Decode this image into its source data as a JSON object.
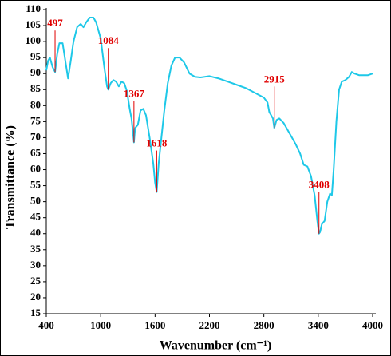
{
  "chart_data": {
    "type": "line",
    "x_label": "Wavenumber (cm⁻¹)",
    "y_label": "Transmittance (%)",
    "xlim": [
      400,
      4000
    ],
    "xticks": [
      400,
      1000,
      1600,
      2200,
      2800,
      3400,
      4000
    ],
    "ylim": [
      15,
      110
    ],
    "yticks": [
      15,
      20,
      25,
      30,
      35,
      40,
      45,
      50,
      55,
      60,
      65,
      70,
      75,
      80,
      85,
      90,
      95,
      100,
      105,
      110
    ],
    "annotations": [
      497,
      1084,
      1367,
      1618,
      2915,
      3408
    ],
    "annotation_color": "#e00000",
    "series": [
      {
        "color": "#1ec8e8",
        "x": [
          400,
          420,
          440,
          470,
          497,
          520,
          545,
          580,
          610,
          640,
          670,
          700,
          740,
          780,
          810,
          840,
          880,
          920,
          950,
          1000,
          1040,
          1070,
          1084,
          1110,
          1140,
          1170,
          1200,
          1230,
          1260,
          1290,
          1320,
          1340,
          1355,
          1367,
          1380,
          1410,
          1440,
          1470,
          1500,
          1540,
          1580,
          1600,
          1618,
          1640,
          1670,
          1700,
          1740,
          1780,
          1820,
          1870,
          1920,
          1980,
          2040,
          2100,
          2200,
          2300,
          2400,
          2500,
          2600,
          2700,
          2800,
          2840,
          2860,
          2880,
          2900,
          2915,
          2940,
          2970,
          3020,
          3080,
          3150,
          3200,
          3240,
          3280,
          3320,
          3360,
          3390,
          3408,
          3420,
          3440,
          3470,
          3500,
          3530,
          3550,
          3570,
          3600,
          3630,
          3660,
          3700,
          3740,
          3770,
          3800,
          3850,
          3900,
          3950,
          4000
        ],
        "values": [
          91,
          94,
          95,
          92,
          90.5,
          96,
          99.5,
          99.5,
          94,
          88.5,
          94,
          100,
          104.5,
          105.5,
          104.5,
          106,
          107.5,
          107.5,
          106,
          101,
          92,
          86,
          85,
          87,
          88,
          87.5,
          86,
          87.5,
          87,
          84.5,
          79,
          76,
          72,
          68.5,
          73,
          74,
          78.5,
          79,
          77,
          70,
          62,
          56,
          53,
          62,
          70,
          78,
          87,
          92.5,
          95,
          95,
          93.5,
          90,
          89,
          88.8,
          89.2,
          88.5,
          87.5,
          86.5,
          85.5,
          84,
          82.5,
          81,
          78,
          77,
          76,
          73,
          75.5,
          76,
          74.5,
          71.5,
          68,
          65,
          61.5,
          61,
          58,
          52,
          44,
          40,
          40.5,
          43,
          44,
          50,
          52.5,
          52,
          60,
          75,
          85,
          87.5,
          88,
          89,
          90.5,
          90,
          89.5,
          89.5,
          89.5,
          90
        ]
      }
    ]
  }
}
